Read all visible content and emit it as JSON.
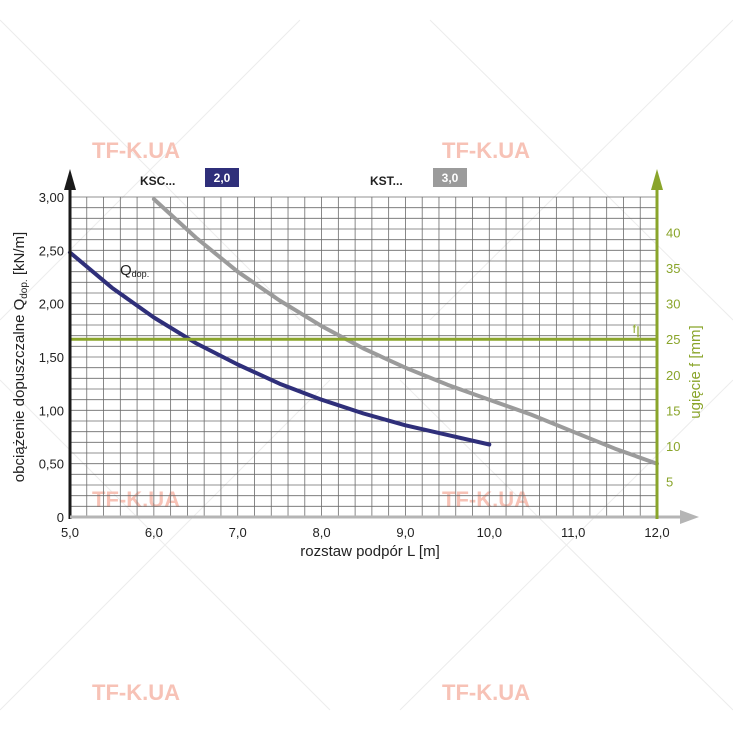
{
  "watermarks": [
    "TF-K.UA",
    "TF-K.UA",
    "TF-K.UA",
    "TF-K.UA",
    "TF-K.UA",
    "TF-K.UA"
  ],
  "colors": {
    "grid": "#6b6b6b",
    "ksc": "#2f2f7a",
    "kst": "#9b9b9b",
    "deflection": "#8aa52b",
    "axis": "#1a1a1a",
    "axis_arrow_x": "#b5b5b5"
  },
  "chart_data": {
    "type": "line",
    "xlabel": "rozstaw podpór L [m]",
    "ylabel_main": "obciążenie dopuszczalne Q",
    "ylabel_sub": "dop.",
    "ylabel_unit": " [kN/m]",
    "y2label": "ugięcie f [mm]",
    "xlim": [
      5.0,
      12.0
    ],
    "ylim": [
      0,
      3.0
    ],
    "y2lim": [
      0,
      45
    ],
    "x_ticks": [
      "5,0",
      "6,0",
      "7,0",
      "8,0",
      "9,0",
      "10,0",
      "11,0",
      "12,0"
    ],
    "y_ticks": [
      "0",
      "0,50",
      "1,00",
      "1,50",
      "2,00",
      "2,50",
      "3,00"
    ],
    "y2_ticks": [
      "5",
      "10",
      "15",
      "20",
      "25",
      "30",
      "35",
      "40"
    ],
    "series": [
      {
        "name": "KSC...",
        "badge": "2,0",
        "x": [
          5.0,
          5.5,
          6.0,
          6.5,
          7.0,
          7.5,
          8.0,
          8.5,
          9.0,
          9.5,
          10.0
        ],
        "values": [
          2.48,
          2.15,
          1.87,
          1.63,
          1.43,
          1.25,
          1.1,
          0.97,
          0.86,
          0.77,
          0.68
        ]
      },
      {
        "name": "KST...",
        "badge": "3,0",
        "x": [
          6.0,
          6.5,
          7.0,
          7.5,
          8.0,
          8.5,
          9.0,
          9.5,
          10.0,
          10.5,
          11.0,
          11.5,
          12.0
        ],
        "values": [
          2.98,
          2.62,
          2.3,
          2.03,
          1.79,
          1.58,
          1.4,
          1.24,
          1.1,
          0.96,
          0.8,
          0.64,
          0.5
        ]
      }
    ],
    "curve_label_main": "Q",
    "curve_label_sub": "dop.",
    "deflection_line": {
      "f": 25,
      "label": "f"
    }
  }
}
